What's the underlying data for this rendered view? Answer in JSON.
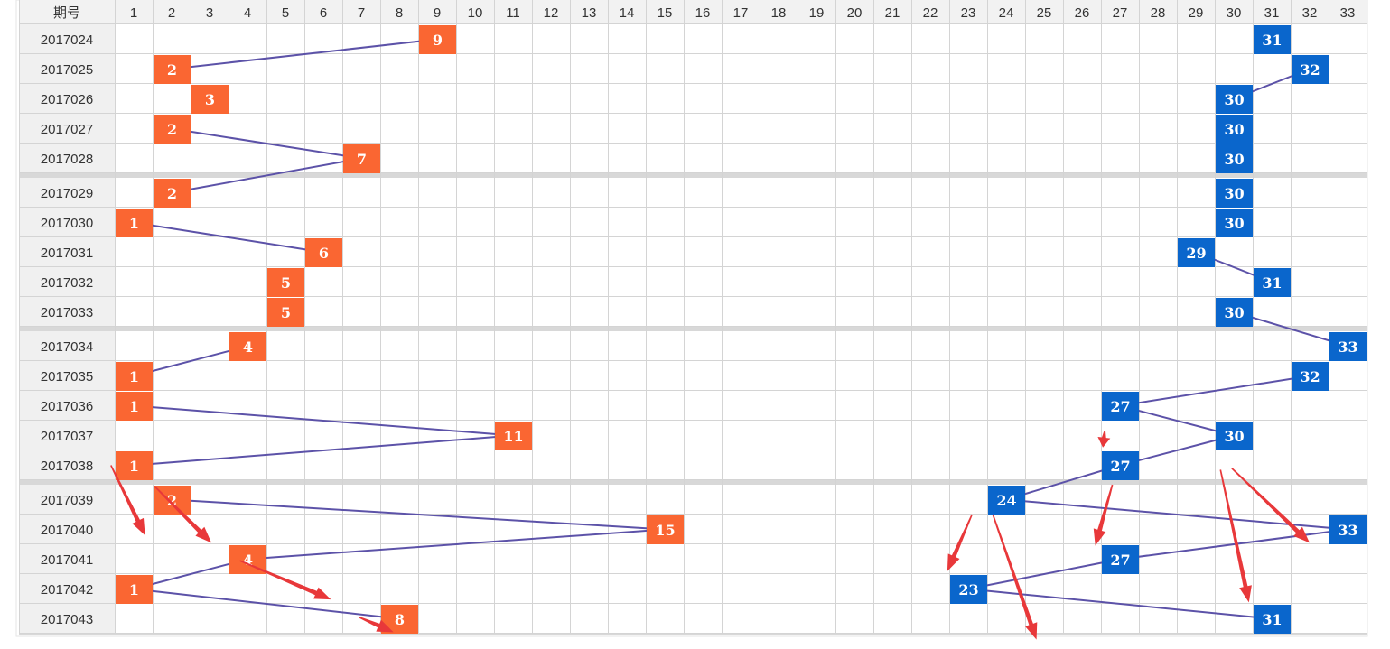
{
  "header": {
    "period_label": "期号"
  },
  "colors": {
    "red_ball": "#fa6632",
    "blue_ball": "#0a66cc",
    "connector": "#5c52a8",
    "arrow": "#e8383a",
    "header_bg": "#f2f2f2",
    "band_bg": "#f0f0f0",
    "separator": "#d8d8d8",
    "grid": "#d4d4d4"
  },
  "chart_data": {
    "type": "table",
    "columns": [
      1,
      2,
      3,
      4,
      5,
      6,
      7,
      8,
      9,
      10,
      11,
      12,
      13,
      14,
      15,
      16,
      17,
      18,
      19,
      20,
      21,
      22,
      23,
      24,
      25,
      26,
      27,
      28,
      29,
      30,
      31,
      32,
      33
    ],
    "rows": [
      {
        "period": "2017024",
        "red": 9,
        "blue": 31
      },
      {
        "period": "2017025",
        "red": 2,
        "blue": 32
      },
      {
        "period": "2017026",
        "red": 3,
        "blue": 30
      },
      {
        "period": "2017027",
        "red": 2,
        "blue": 30
      },
      {
        "period": "2017028",
        "red": 7,
        "blue": 30
      },
      {
        "period": "2017029",
        "red": 2,
        "blue": 30
      },
      {
        "period": "2017030",
        "red": 1,
        "blue": 30
      },
      {
        "period": "2017031",
        "red": 6,
        "blue": 29
      },
      {
        "period": "2017032",
        "red": 5,
        "blue": 31
      },
      {
        "period": "2017033",
        "red": 5,
        "blue": 30
      },
      {
        "period": "2017034",
        "red": 4,
        "blue": 33
      },
      {
        "period": "2017035",
        "red": 1,
        "blue": 32
      },
      {
        "period": "2017036",
        "red": 1,
        "blue": 27
      },
      {
        "period": "2017037",
        "red": 11,
        "blue": 30
      },
      {
        "period": "2017038",
        "red": 1,
        "blue": 27
      },
      {
        "period": "2017039",
        "red": 2,
        "blue": 24
      },
      {
        "period": "2017040",
        "red": 15,
        "blue": 33
      },
      {
        "period": "2017041",
        "red": 4,
        "blue": 27
      },
      {
        "period": "2017042",
        "red": 1,
        "blue": 23
      },
      {
        "period": "2017043",
        "red": 8,
        "blue": 31
      }
    ],
    "group_size": 5,
    "red_trend_lines": [
      [
        0,
        1
      ],
      [
        3,
        4
      ],
      [
        4,
        5
      ],
      [
        6,
        7
      ],
      [
        10,
        11
      ],
      [
        12,
        13
      ],
      [
        13,
        14
      ],
      [
        15,
        16
      ],
      [
        16,
        17
      ],
      [
        17,
        18
      ],
      [
        18,
        19
      ]
    ],
    "blue_trend_lines": [
      [
        1,
        2
      ],
      [
        7,
        8
      ],
      [
        9,
        10
      ],
      [
        11,
        12
      ],
      [
        12,
        13
      ],
      [
        13,
        14
      ],
      [
        14,
        15
      ],
      [
        15,
        16
      ],
      [
        16,
        17
      ],
      [
        17,
        18
      ],
      [
        18,
        19
      ]
    ],
    "red_arrows": [
      {
        "from": [
          0.9,
          14.5
        ],
        "to": [
          1.8,
          16.7
        ]
      },
      {
        "from": [
          2.05,
          15.05
        ],
        "to": [
          3.55,
          16.95
        ]
      },
      {
        "from": [
          4.3,
          17.55
        ],
        "to": [
          6.7,
          18.85
        ]
      },
      {
        "from": [
          7.45,
          19.45
        ],
        "to": [
          8.35,
          19.95
        ]
      },
      {
        "from": [
          23.6,
          16.0
        ],
        "to": [
          22.95,
          17.9
        ]
      },
      {
        "from": [
          24.15,
          16.0
        ],
        "to": [
          25.3,
          20.05
        ]
      },
      {
        "from": [
          27.1,
          13.35
        ],
        "to": [
          27.05,
          13.9
        ]
      },
      {
        "from": [
          27.3,
          15.0
        ],
        "to": [
          26.85,
          17.05
        ]
      },
      {
        "from": [
          30.15,
          14.65
        ],
        "to": [
          30.9,
          18.95
        ]
      },
      {
        "from": [
          30.45,
          14.6
        ],
        "to": [
          32.5,
          16.95
        ]
      }
    ]
  }
}
